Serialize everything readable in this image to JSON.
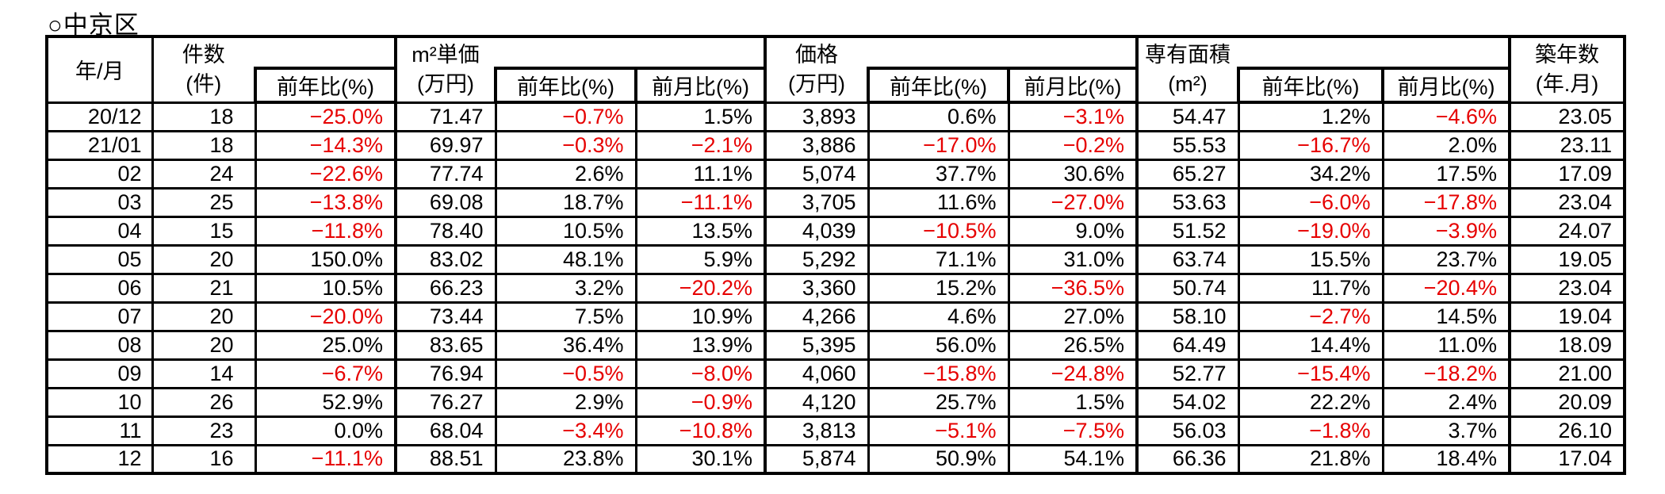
{
  "title": "○中京区",
  "colors": {
    "negative": "#e60000",
    "text": "#000000",
    "border": "#000000",
    "background": "#ffffff"
  },
  "table": {
    "header": {
      "year_month": "年/月",
      "yoy": "前年比(%)",
      "mom": "前月比(%)",
      "groups": {
        "count": {
          "label": "件数",
          "unit": "(件)"
        },
        "unit_price": {
          "label": "m²単価",
          "unit": "(万円)"
        },
        "price": {
          "label": "価格",
          "unit": "(万円)"
        },
        "area": {
          "label": "専有面積",
          "unit": "(m²)"
        },
        "age": {
          "label": "築年数",
          "unit": "(年.月)"
        }
      }
    },
    "columns": [
      "year-month",
      "count",
      "count-yoy",
      "unit-price",
      "unit-price-yoy",
      "unit-price-mom",
      "price",
      "price-yoy",
      "price-mom",
      "area",
      "area-yoy",
      "area-mom",
      "building-age"
    ],
    "rows": [
      [
        "20/12",
        "18",
        "−25.0%",
        "71.47",
        "−0.7%",
        "1.5%",
        "3,893",
        "0.6%",
        "−3.1%",
        "54.47",
        "1.2%",
        "−4.6%",
        "23.05"
      ],
      [
        "21/01",
        "18",
        "−14.3%",
        "69.97",
        "−0.3%",
        "−2.1%",
        "3,886",
        "−17.0%",
        "−0.2%",
        "55.53",
        "−16.7%",
        "2.0%",
        "23.11"
      ],
      [
        "02",
        "24",
        "−22.6%",
        "77.74",
        "2.6%",
        "11.1%",
        "5,074",
        "37.7%",
        "30.6%",
        "65.27",
        "34.2%",
        "17.5%",
        "17.09"
      ],
      [
        "03",
        "25",
        "−13.8%",
        "69.08",
        "18.7%",
        "−11.1%",
        "3,705",
        "11.6%",
        "−27.0%",
        "53.63",
        "−6.0%",
        "−17.8%",
        "23.04"
      ],
      [
        "04",
        "15",
        "−11.8%",
        "78.40",
        "10.5%",
        "13.5%",
        "4,039",
        "−10.5%",
        "9.0%",
        "51.52",
        "−19.0%",
        "−3.9%",
        "24.07"
      ],
      [
        "05",
        "20",
        "150.0%",
        "83.02",
        "48.1%",
        "5.9%",
        "5,292",
        "71.1%",
        "31.0%",
        "63.74",
        "15.5%",
        "23.7%",
        "19.05"
      ],
      [
        "06",
        "21",
        "10.5%",
        "66.23",
        "3.2%",
        "−20.2%",
        "3,360",
        "15.2%",
        "−36.5%",
        "50.74",
        "11.7%",
        "−20.4%",
        "23.04"
      ],
      [
        "07",
        "20",
        "−20.0%",
        "73.44",
        "7.5%",
        "10.9%",
        "4,266",
        "4.6%",
        "27.0%",
        "58.10",
        "−2.7%",
        "14.5%",
        "19.04"
      ],
      [
        "08",
        "20",
        "25.0%",
        "83.65",
        "36.4%",
        "13.9%",
        "5,395",
        "56.0%",
        "26.5%",
        "64.49",
        "14.4%",
        "11.0%",
        "18.09"
      ],
      [
        "09",
        "14",
        "−6.7%",
        "76.94",
        "−0.5%",
        "−8.0%",
        "4,060",
        "−15.8%",
        "−24.8%",
        "52.77",
        "−15.4%",
        "−18.2%",
        "21.00"
      ],
      [
        "10",
        "26",
        "52.9%",
        "76.27",
        "2.9%",
        "−0.9%",
        "4,120",
        "25.7%",
        "1.5%",
        "54.02",
        "22.2%",
        "2.4%",
        "20.09"
      ],
      [
        "11",
        "23",
        "0.0%",
        "68.04",
        "−3.4%",
        "−10.8%",
        "3,813",
        "−5.1%",
        "−7.5%",
        "56.03",
        "−1.8%",
        "3.7%",
        "26.10"
      ],
      [
        "12",
        "16",
        "−11.1%",
        "88.51",
        "23.8%",
        "30.1%",
        "5,874",
        "50.9%",
        "54.1%",
        "66.36",
        "21.8%",
        "18.4%",
        "17.04"
      ]
    ]
  }
}
